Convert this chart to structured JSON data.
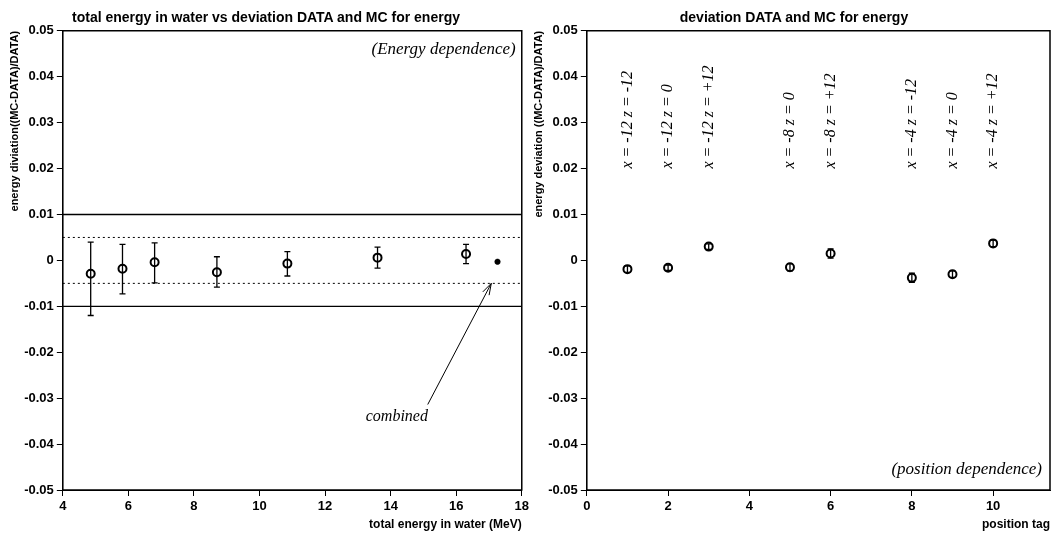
{
  "chart_data": [
    {
      "type": "scatter",
      "title": "total energy in water vs deviation DATA and MC for energy",
      "xlabel": "total energy in water (MeV)",
      "ylabel": "energy diviation((MC-DATA)/DATA)",
      "series": [
        {
          "color": "#000000",
          "marker": "circle",
          "x": [
            4.85,
            5.82,
            6.8,
            8.7,
            10.85,
            13.6,
            16.3
          ],
          "values": [
            -0.0029,
            -0.0018,
            -0.0004,
            -0.0026,
            -0.0007,
            0.0006,
            0.0014
          ],
          "errors": [
            [
              -0.012,
              0.004
            ],
            [
              -0.0073,
              0.0035
            ],
            [
              -0.0049,
              0.0038
            ],
            [
              -0.0058,
              0.0008
            ],
            [
              -0.0034,
              0.0019
            ],
            [
              -0.0017,
              0.0029
            ],
            [
              -0.0007,
              0.0035
            ]
          ]
        },
        {
          "color": "#000000",
          "marker": "cross",
          "x": [
            17.26
          ],
          "values": [
            -0.0003
          ]
        }
      ],
      "xlim": [
        4,
        18
      ],
      "xticks": [
        4,
        6,
        8,
        10,
        12,
        14,
        16,
        18
      ],
      "ylim": [
        -0.05,
        0.05
      ],
      "yticks": [
        -0.05,
        -0.04,
        -0.03,
        -0.02,
        -0.01,
        0,
        0.01,
        0.02,
        0.03,
        0.04,
        0.05
      ],
      "ref_lines": [
        {
          "axis": "y",
          "value": 0.01,
          "line_style": "solid",
          "color": "#000000"
        },
        {
          "axis": "y",
          "value": -0.01,
          "line_style": "solid",
          "color": "#000000"
        },
        {
          "axis": "y",
          "value": 0.005,
          "line_style": "dotted",
          "color": "#000000"
        },
        {
          "axis": "y",
          "value": -0.005,
          "line_style": "dotted",
          "color": "#000000"
        }
      ],
      "annotations": [
        "(Energy dependence)",
        {
          "text": "combined",
          "x": 17.07,
          "y": -0.005
        }
      ],
      "grid": false,
      "legend": false
    },
    {
      "type": "scatter",
      "title": "deviation DATA and MC for energy",
      "xlabel": "position tag",
      "ylabel": "energy deviation ((MC-DATA)/DATA)",
      "series": [
        {
          "color": "#000000",
          "marker": "circle",
          "x": [
            1,
            2,
            3,
            5,
            6,
            8,
            9,
            10
          ],
          "values": [
            -0.0019,
            -0.0016,
            0.003,
            -0.0015,
            0.0015,
            -0.0038,
            -0.003,
            0.0037
          ],
          "errors": [
            0.0007,
            0.0006,
            0.0006,
            0.0008,
            0.001,
            0.001,
            0.0007,
            0.0007
          ]
        }
      ],
      "xlim": [
        0,
        11.4
      ],
      "xticks": [
        0,
        2,
        4,
        6,
        8,
        10
      ],
      "ylim": [
        -0.05,
        0.05
      ],
      "yticks": [
        -0.05,
        -0.04,
        -0.03,
        -0.02,
        -0.01,
        0,
        0.01,
        0.02,
        0.03,
        0.04,
        0.05
      ],
      "annotations": [
        "(position dependence)",
        "x = -12 z = -12",
        "x = -12 z = 0",
        "x = -12 z = +12",
        "x = -8 z = 0",
        "x = -8 z = +12",
        "x = -4 z = -12",
        "x = -4 z = 0",
        "x = -4 z = +12"
      ],
      "grid": false,
      "legend": false
    }
  ]
}
